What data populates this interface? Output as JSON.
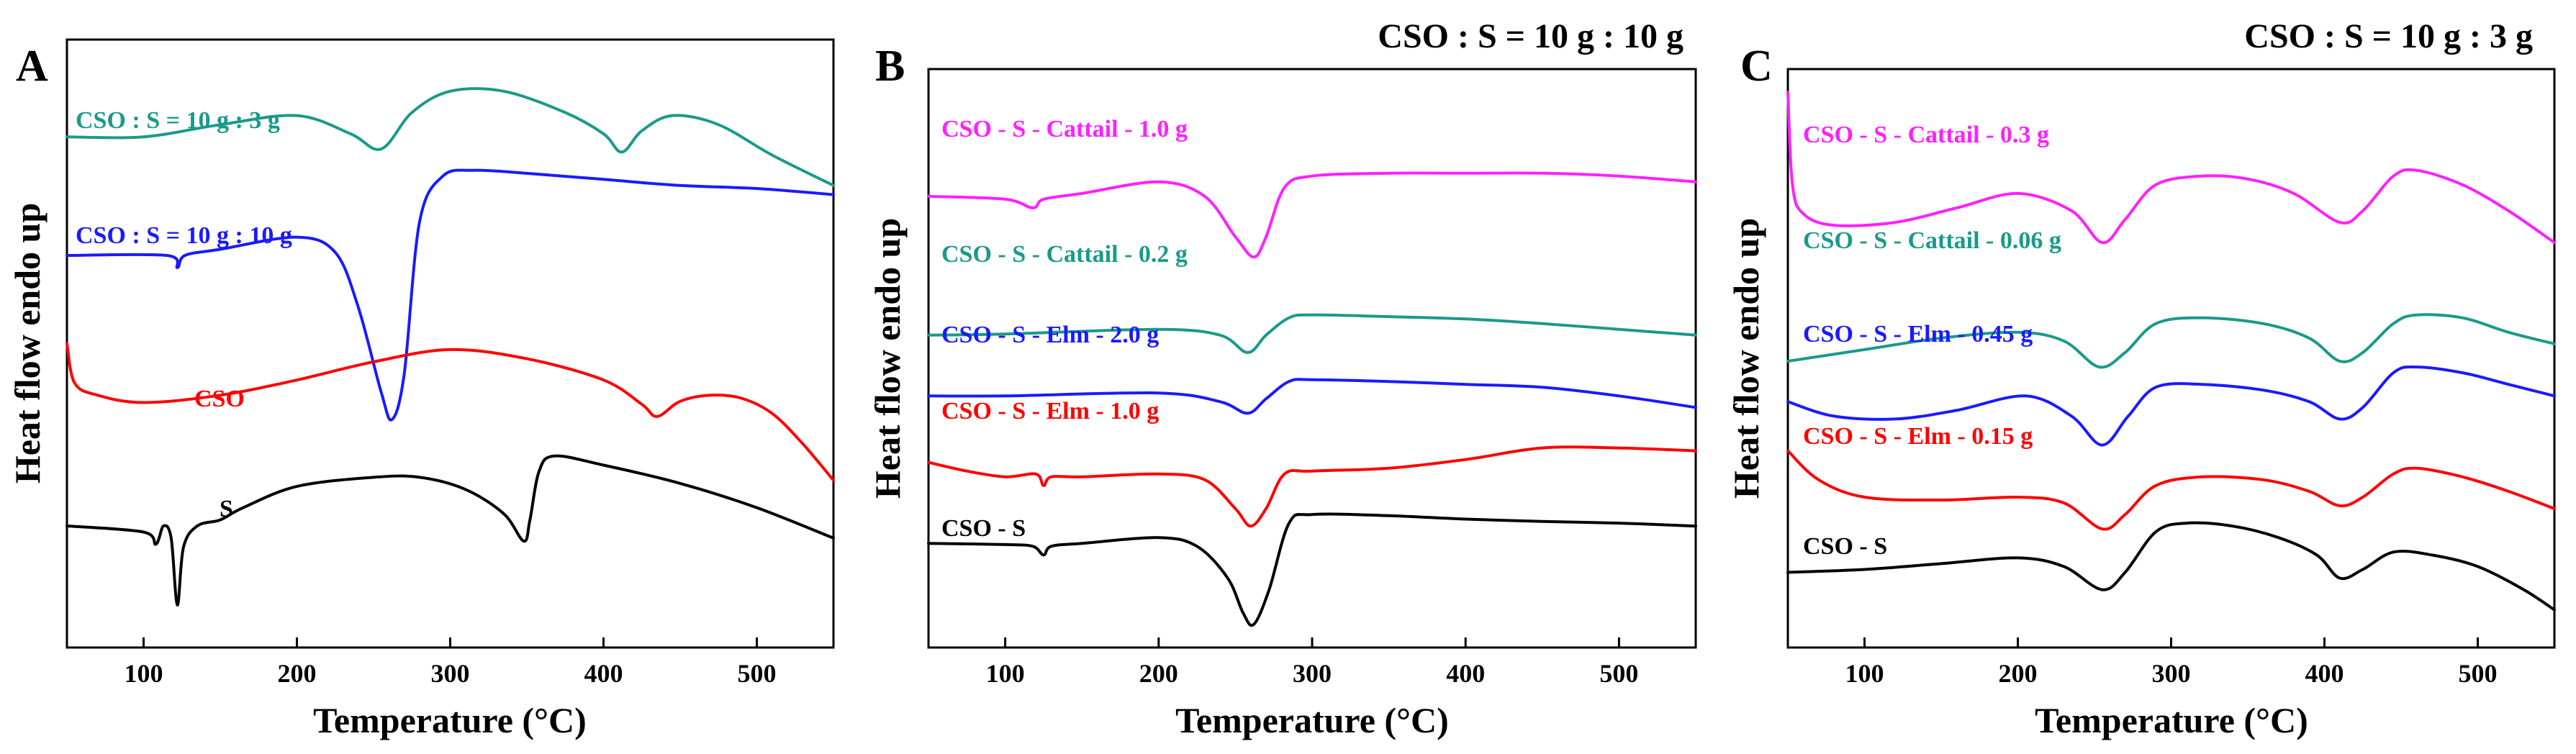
{
  "chart_data": [
    {
      "type": "line",
      "panel_label": "A",
      "header": "",
      "xlabel": "Temperature (°C)",
      "ylabel": "Heat flow endo up",
      "xlim": [
        50,
        550
      ],
      "x_ticks": [
        100,
        200,
        300,
        400,
        500
      ],
      "y_ticks_shown": false,
      "series": [
        {
          "name": "CSO : S = 10 g : 3 g",
          "color": "#1a9a8a",
          "points": [
            [
              50,
              0.16
            ],
            [
              100,
              0.16
            ],
            [
              150,
              0.14
            ],
            [
              200,
              0.125
            ],
            [
              235,
              0.155
            ],
            [
              255,
              0.18
            ],
            [
              275,
              0.12
            ],
            [
              300,
              0.085
            ],
            [
              335,
              0.085
            ],
            [
              375,
              0.12
            ],
            [
              400,
              0.155
            ],
            [
              412,
              0.185
            ],
            [
              425,
              0.15
            ],
            [
              445,
              0.125
            ],
            [
              475,
              0.14
            ],
            [
              510,
              0.19
            ],
            [
              550,
              0.24
            ]
          ]
        },
        {
          "name": "CSO : S = 10 g : 10 g",
          "color": "#1a1aff",
          "points": [
            [
              50,
              0.355
            ],
            [
              115,
              0.355
            ],
            [
              122,
              0.375
            ],
            [
              127,
              0.355
            ],
            [
              150,
              0.345
            ],
            [
              200,
              0.325
            ],
            [
              225,
              0.35
            ],
            [
              240,
              0.44
            ],
            [
              255,
              0.58
            ],
            [
              262,
              0.625
            ],
            [
              270,
              0.55
            ],
            [
              280,
              0.3
            ],
            [
              295,
              0.225
            ],
            [
              315,
              0.215
            ],
            [
              350,
              0.22
            ],
            [
              400,
              0.23
            ],
            [
              450,
              0.24
            ],
            [
              500,
              0.245
            ],
            [
              550,
              0.255
            ]
          ]
        },
        {
          "name": "CSO",
          "color": "#ff0000",
          "points": [
            [
              50,
              0.5
            ],
            [
              55,
              0.565
            ],
            [
              70,
              0.585
            ],
            [
              100,
              0.597
            ],
            [
              150,
              0.585
            ],
            [
              200,
              0.56
            ],
            [
              250,
              0.53
            ],
            [
              300,
              0.51
            ],
            [
              350,
              0.525
            ],
            [
              400,
              0.56
            ],
            [
              425,
              0.6
            ],
            [
              435,
              0.62
            ],
            [
              450,
              0.595
            ],
            [
              470,
              0.585
            ],
            [
              490,
              0.59
            ],
            [
              510,
              0.615
            ],
            [
              530,
              0.665
            ],
            [
              550,
              0.725
            ]
          ]
        },
        {
          "name": "S",
          "color": "#000000",
          "points": [
            [
              50,
              0.8
            ],
            [
              100,
              0.81
            ],
            [
              108,
              0.83
            ],
            [
              113,
              0.8
            ],
            [
              118,
              0.82
            ],
            [
              122,
              0.93
            ],
            [
              126,
              0.835
            ],
            [
              135,
              0.8
            ],
            [
              150,
              0.79
            ],
            [
              165,
              0.77
            ],
            [
              200,
              0.735
            ],
            [
              250,
              0.72
            ],
            [
              280,
              0.72
            ],
            [
              310,
              0.74
            ],
            [
              335,
              0.78
            ],
            [
              348,
              0.825
            ],
            [
              352,
              0.79
            ],
            [
              358,
              0.71
            ],
            [
              368,
              0.685
            ],
            [
              400,
              0.7
            ],
            [
              450,
              0.73
            ],
            [
              500,
              0.77
            ],
            [
              550,
              0.82
            ]
          ]
        }
      ]
    },
    {
      "type": "line",
      "panel_label": "B",
      "header": "CSO : S = 10 g : 10 g",
      "xlabel": "Temperature (°C)",
      "ylabel": "Heat flow endo up",
      "xlim": [
        50,
        550
      ],
      "x_ticks": [
        100,
        200,
        300,
        400,
        500
      ],
      "y_ticks_shown": false,
      "series": [
        {
          "name": "CSO - S - Cattail - 1.0 g",
          "color": "#ff20ff",
          "points": [
            [
              50,
              0.22
            ],
            [
              100,
              0.225
            ],
            [
              118,
              0.24
            ],
            [
              125,
              0.225
            ],
            [
              150,
              0.215
            ],
            [
              200,
              0.195
            ],
            [
              230,
              0.22
            ],
            [
              250,
              0.29
            ],
            [
              262,
              0.325
            ],
            [
              270,
              0.29
            ],
            [
              282,
              0.205
            ],
            [
              300,
              0.185
            ],
            [
              350,
              0.18
            ],
            [
              400,
              0.18
            ],
            [
              450,
              0.18
            ],
            [
              500,
              0.185
            ],
            [
              550,
              0.195
            ]
          ]
        },
        {
          "name": "CSO - S - Cattail - 0.2 g",
          "color": "#1a9a8a",
          "points": [
            [
              50,
              0.46
            ],
            [
              100,
              0.458
            ],
            [
              200,
              0.45
            ],
            [
              240,
              0.46
            ],
            [
              258,
              0.49
            ],
            [
              270,
              0.46
            ],
            [
              285,
              0.43
            ],
            [
              300,
              0.425
            ],
            [
              350,
              0.428
            ],
            [
              400,
              0.432
            ],
            [
              450,
              0.44
            ],
            [
              500,
              0.45
            ],
            [
              550,
              0.46
            ]
          ]
        },
        {
          "name": "CSO - S - Elm - 2.0 g",
          "color": "#1a1aff",
          "points": [
            [
              50,
              0.565
            ],
            [
              100,
              0.565
            ],
            [
              200,
              0.56
            ],
            [
              240,
              0.575
            ],
            [
              258,
              0.595
            ],
            [
              270,
              0.57
            ],
            [
              285,
              0.54
            ],
            [
              300,
              0.537
            ],
            [
              350,
              0.54
            ],
            [
              400,
              0.545
            ],
            [
              450,
              0.55
            ],
            [
              500,
              0.565
            ],
            [
              550,
              0.585
            ]
          ]
        },
        {
          "name": "CSO - S - Elm - 1.0 g",
          "color": "#ff0000",
          "points": [
            [
              50,
              0.68
            ],
            [
              75,
              0.695
            ],
            [
              100,
              0.705
            ],
            [
              120,
              0.7
            ],
            [
              125,
              0.72
            ],
            [
              130,
              0.705
            ],
            [
              150,
              0.705
            ],
            [
              200,
              0.7
            ],
            [
              230,
              0.71
            ],
            [
              250,
              0.76
            ],
            [
              260,
              0.79
            ],
            [
              270,
              0.76
            ],
            [
              282,
              0.7
            ],
            [
              300,
              0.695
            ],
            [
              350,
              0.69
            ],
            [
              400,
              0.675
            ],
            [
              450,
              0.655
            ],
            [
              500,
              0.655
            ],
            [
              550,
              0.66
            ]
          ]
        },
        {
          "name": "CSO - S",
          "color": "#000000",
          "points": [
            [
              50,
              0.82
            ],
            [
              100,
              0.822
            ],
            [
              118,
              0.825
            ],
            [
              125,
              0.84
            ],
            [
              130,
              0.825
            ],
            [
              150,
              0.82
            ],
            [
              200,
              0.81
            ],
            [
              225,
              0.825
            ],
            [
              245,
              0.88
            ],
            [
              255,
              0.94
            ],
            [
              262,
              0.96
            ],
            [
              272,
              0.9
            ],
            [
              285,
              0.785
            ],
            [
              300,
              0.77
            ],
            [
              350,
              0.772
            ],
            [
              400,
              0.778
            ],
            [
              450,
              0.782
            ],
            [
              500,
              0.785
            ],
            [
              550,
              0.79
            ]
          ]
        }
      ]
    },
    {
      "type": "line",
      "panel_label": "C",
      "header": "CSO : S = 10 g : 3 g",
      "xlabel": "Temperature (°C)",
      "ylabel": "Heat flow endo up",
      "xlim": [
        50,
        550
      ],
      "x_ticks": [
        100,
        200,
        300,
        400,
        500
      ],
      "y_ticks_shown": false,
      "series": [
        {
          "name": "CSO - S - Cattail - 0.3 g",
          "color": "#ff20ff",
          "points": [
            [
              50,
              0.04
            ],
            [
              53,
              0.2
            ],
            [
              60,
              0.25
            ],
            [
              80,
              0.27
            ],
            [
              120,
              0.265
            ],
            [
              160,
              0.24
            ],
            [
              200,
              0.215
            ],
            [
              235,
              0.245
            ],
            [
              255,
              0.3
            ],
            [
              270,
              0.26
            ],
            [
              290,
              0.2
            ],
            [
              320,
              0.185
            ],
            [
              350,
              0.19
            ],
            [
              380,
              0.215
            ],
            [
              410,
              0.265
            ],
            [
              425,
              0.245
            ],
            [
              445,
              0.185
            ],
            [
              460,
              0.175
            ],
            [
              490,
              0.2
            ],
            [
              520,
              0.245
            ],
            [
              550,
              0.3
            ]
          ]
        },
        {
          "name": "CSO - S - Cattail - 0.06 g",
          "color": "#1a9a8a",
          "points": [
            [
              50,
              0.505
            ],
            [
              100,
              0.485
            ],
            [
              150,
              0.465
            ],
            [
              200,
              0.455
            ],
            [
              230,
              0.47
            ],
            [
              253,
              0.515
            ],
            [
              270,
              0.49
            ],
            [
              290,
              0.44
            ],
            [
              320,
              0.43
            ],
            [
              360,
              0.44
            ],
            [
              390,
              0.465
            ],
            [
              410,
              0.505
            ],
            [
              425,
              0.49
            ],
            [
              445,
              0.44
            ],
            [
              460,
              0.425
            ],
            [
              490,
              0.43
            ],
            [
              520,
              0.455
            ],
            [
              550,
              0.475
            ]
          ]
        },
        {
          "name": "CSO - S - Elm - 0.45 g",
          "color": "#1a1aff",
          "points": [
            [
              50,
              0.575
            ],
            [
              80,
              0.6
            ],
            [
              120,
              0.605
            ],
            [
              160,
              0.59
            ],
            [
              205,
              0.565
            ],
            [
              235,
              0.6
            ],
            [
              255,
              0.65
            ],
            [
              272,
              0.6
            ],
            [
              290,
              0.55
            ],
            [
              320,
              0.545
            ],
            [
              360,
              0.555
            ],
            [
              390,
              0.575
            ],
            [
              410,
              0.605
            ],
            [
              425,
              0.585
            ],
            [
              445,
              0.525
            ],
            [
              460,
              0.515
            ],
            [
              490,
              0.525
            ],
            [
              520,
              0.545
            ],
            [
              550,
              0.565
            ]
          ]
        },
        {
          "name": "CSO - S - Elm - 0.15 g",
          "color": "#ff0000",
          "points": [
            [
              50,
              0.66
            ],
            [
              70,
              0.71
            ],
            [
              100,
              0.74
            ],
            [
              150,
              0.745
            ],
            [
              200,
              0.74
            ],
            [
              230,
              0.75
            ],
            [
              255,
              0.795
            ],
            [
              270,
              0.77
            ],
            [
              290,
              0.72
            ],
            [
              320,
              0.705
            ],
            [
              360,
              0.71
            ],
            [
              390,
              0.73
            ],
            [
              410,
              0.755
            ],
            [
              425,
              0.74
            ],
            [
              445,
              0.7
            ],
            [
              460,
              0.69
            ],
            [
              490,
              0.705
            ],
            [
              520,
              0.73
            ],
            [
              550,
              0.76
            ]
          ]
        },
        {
          "name": "CSO - S",
          "color": "#000000",
          "points": [
            [
              50,
              0.87
            ],
            [
              100,
              0.865
            ],
            [
              150,
              0.855
            ],
            [
              200,
              0.845
            ],
            [
              230,
              0.86
            ],
            [
              255,
              0.9
            ],
            [
              270,
              0.87
            ],
            [
              290,
              0.8
            ],
            [
              310,
              0.785
            ],
            [
              340,
              0.79
            ],
            [
              370,
              0.81
            ],
            [
              395,
              0.84
            ],
            [
              410,
              0.88
            ],
            [
              425,
              0.865
            ],
            [
              445,
              0.835
            ],
            [
              470,
              0.84
            ],
            [
              500,
              0.86
            ],
            [
              530,
              0.9
            ],
            [
              550,
              0.935
            ]
          ]
        }
      ]
    }
  ]
}
